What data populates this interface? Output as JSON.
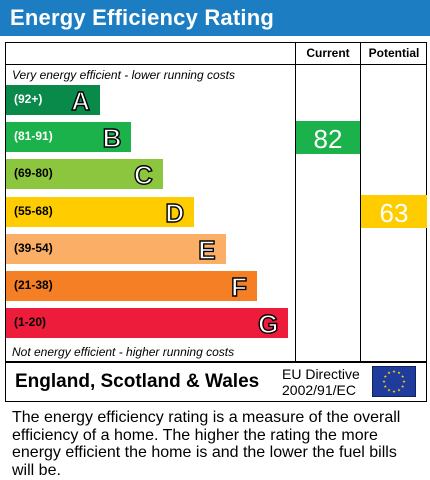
{
  "header": {
    "title": "Energy Efficiency Rating"
  },
  "columns": {
    "current": "Current",
    "potential": "Potential"
  },
  "notes": {
    "top": "Very energy efficient - lower running costs",
    "bottom": "Not energy efficient - higher running costs"
  },
  "chart_data": {
    "type": "bar",
    "categories": [
      "A",
      "B",
      "C",
      "D",
      "E",
      "F",
      "G"
    ],
    "bands": [
      {
        "letter": "A",
        "range": "(92+)",
        "color": "#0a8a4a",
        "range_color": "#ffffff"
      },
      {
        "letter": "B",
        "range": "(81-91)",
        "color": "#1bb24b",
        "range_color": "#ffffff"
      },
      {
        "letter": "C",
        "range": "(69-80)",
        "color": "#8cc63f",
        "range_color": "#000000"
      },
      {
        "letter": "D",
        "range": "(55-68)",
        "color": "#ffcc00",
        "range_color": "#000000"
      },
      {
        "letter": "E",
        "range": "(39-54)",
        "color": "#fbae66",
        "range_color": "#000000"
      },
      {
        "letter": "F",
        "range": "(21-38)",
        "color": "#f47f25",
        "range_color": "#000000"
      },
      {
        "letter": "G",
        "range": "(1-20)",
        "color": "#ec1c3a",
        "range_color": "#000000"
      }
    ],
    "current": {
      "value": 82,
      "band": "B",
      "color": "#1bb24b"
    },
    "potential": {
      "value": 63,
      "band": "D",
      "color": "#ffcc00"
    }
  },
  "footer": {
    "region": "England, Scotland & Wales",
    "eu_line1": "EU Directive",
    "eu_line2": "2002/91/EC",
    "flag_color": "#1f3c9c",
    "star_color": "#ffdd00"
  },
  "description": "The energy efficiency rating is a measure of the overall efficiency of a home. The higher the rating the more energy efficient the home is and the lower the fuel bills will be."
}
